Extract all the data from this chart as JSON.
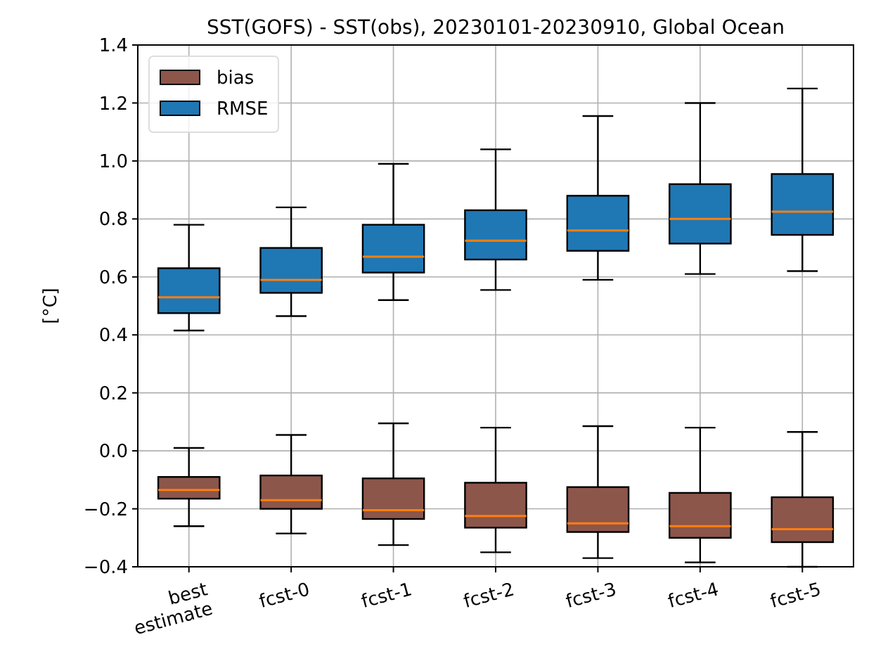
{
  "chart_data": {
    "type": "box",
    "title": "SST(GOFS) - SST(obs), 20230101-20230910, Global Ocean",
    "ylabel": "[°C]",
    "categories": [
      "best estimate",
      "fcst-0",
      "fcst-1",
      "fcst-2",
      "fcst-3",
      "fcst-4",
      "fcst-5"
    ],
    "ylim": [
      -0.4,
      1.4
    ],
    "yticks": [
      {
        "value": -0.4,
        "label": "−0.4"
      },
      {
        "value": -0.2,
        "label": "−0.2"
      },
      {
        "value": 0,
        "label": "0.0"
      },
      0.2,
      0.4,
      0.6,
      0.8,
      {
        "value": 1,
        "label": "1.0"
      },
      1.2,
      1.4
    ],
    "grid": true,
    "legend": "top left",
    "series": [
      {
        "name": "bias",
        "color": "#8c564b",
        "boxes": [
          {
            "low": -0.26,
            "q1": -0.165,
            "median": -0.135,
            "q3": -0.09,
            "high": 0.01
          },
          {
            "low": -0.285,
            "q1": -0.2,
            "median": -0.17,
            "q3": -0.085,
            "high": 0.055
          },
          {
            "low": -0.325,
            "q1": -0.235,
            "median": -0.205,
            "q3": -0.095,
            "high": 0.095
          },
          {
            "low": -0.35,
            "q1": -0.265,
            "median": -0.225,
            "q3": -0.11,
            "high": 0.08
          },
          {
            "low": -0.37,
            "q1": -0.28,
            "median": -0.25,
            "q3": -0.125,
            "high": 0.085
          },
          {
            "low": -0.385,
            "q1": -0.3,
            "median": -0.26,
            "q3": -0.145,
            "high": 0.08
          },
          {
            "low": -0.4,
            "q1": -0.315,
            "median": -0.27,
            "q3": -0.16,
            "high": 0.065
          }
        ]
      },
      {
        "name": "RMSE",
        "color": "#1f77b4",
        "boxes": [
          {
            "low": 0.415,
            "q1": 0.475,
            "median": 0.53,
            "q3": 0.63,
            "high": 0.78
          },
          {
            "low": 0.465,
            "q1": 0.545,
            "median": 0.59,
            "q3": 0.7,
            "high": 0.84
          },
          {
            "low": 0.52,
            "q1": 0.615,
            "median": 0.67,
            "q3": 0.78,
            "high": 0.99
          },
          {
            "low": 0.555,
            "q1": 0.66,
            "median": 0.725,
            "q3": 0.83,
            "high": 1.04
          },
          {
            "low": 0.59,
            "q1": 0.69,
            "median": 0.76,
            "q3": 0.88,
            "high": 1.155
          },
          {
            "low": 0.61,
            "q1": 0.715,
            "median": 0.8,
            "q3": 0.92,
            "high": 1.2
          },
          {
            "low": 0.62,
            "q1": 0.745,
            "median": 0.825,
            "q3": 0.955,
            "high": 1.25
          }
        ]
      }
    ]
  }
}
